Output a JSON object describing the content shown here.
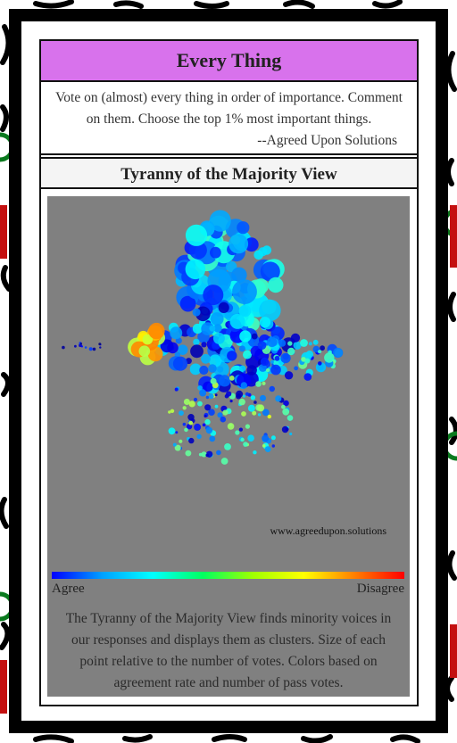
{
  "header": {
    "title": "Every Thing"
  },
  "intro": {
    "text": "Vote on (almost) every thing in order of importance. Comment on them. Choose the top 1% most important things.",
    "attribution": "--Agreed Upon Solutions"
  },
  "view": {
    "title": "Tyranny of the Majority View",
    "watermark": "www.agreedupon.solutions",
    "legend": {
      "low": "Agree",
      "high": "Disagree"
    },
    "description": "The Tyranny of the Majority View finds minority voices in our responses and displays them as clusters. Size of each point relative to the number of votes. Colors based on agreement rate and number of pass votes."
  }
}
